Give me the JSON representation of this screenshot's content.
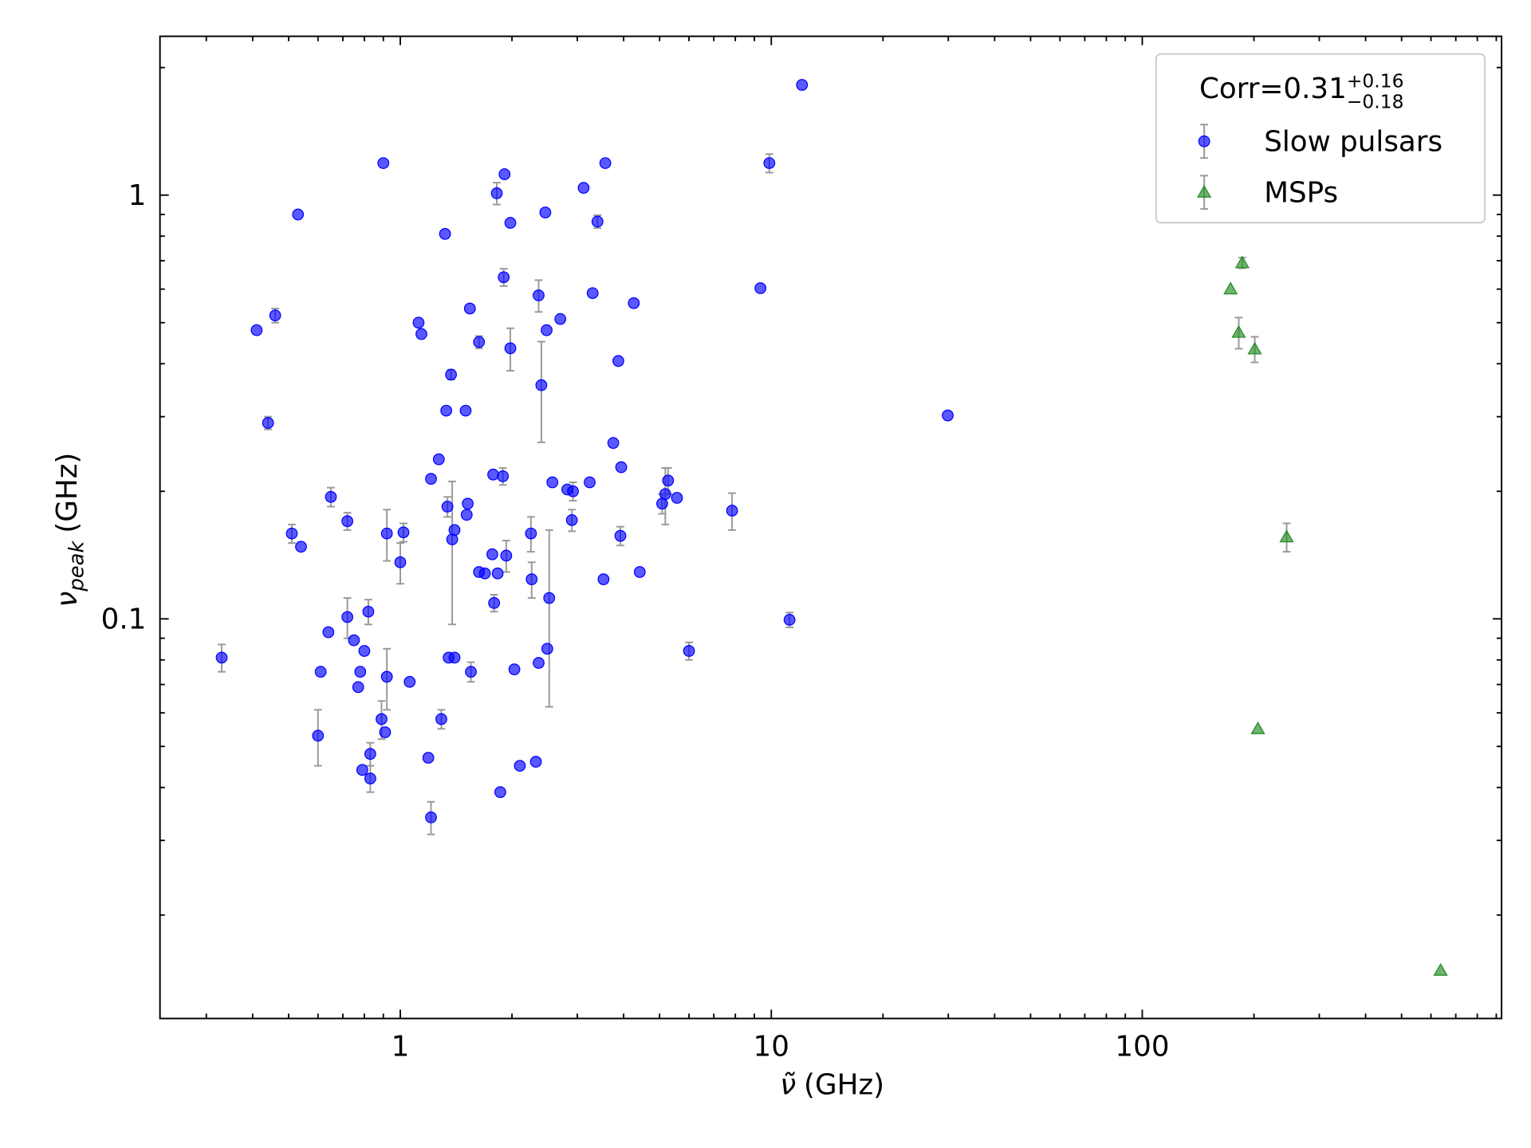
{
  "chart_data": {
    "type": "scatter",
    "x_label": {
      "symbol": "ν̃",
      "unit": "(GHz)"
    },
    "y_label": {
      "symbol": "ν",
      "subscript": "peak",
      "unit": "(GHz)"
    },
    "x_log": true,
    "y_log": true,
    "xlim": [
      0.225,
      930
    ],
    "ylim": [
      0.0114,
      2.37
    ],
    "xticks": [
      1,
      10,
      100
    ],
    "yticks": [
      0.1,
      1
    ],
    "xminorticks": [
      0.3,
      0.4,
      0.5,
      0.6,
      0.7,
      0.8,
      0.9,
      2,
      3,
      4,
      5,
      6,
      7,
      8,
      9,
      20,
      30,
      40,
      50,
      60,
      70,
      80,
      90,
      200,
      300,
      400,
      500,
      600,
      700,
      800,
      900
    ],
    "yminorticks": [
      0.02,
      0.03,
      0.04,
      0.05,
      0.06,
      0.07,
      0.08,
      0.09,
      0.2,
      0.3,
      0.4,
      0.5,
      0.6,
      0.7,
      0.8,
      0.9,
      2
    ],
    "legend": {
      "position": "upper right",
      "title": {
        "text": "Corr=0.31",
        "sup": "+0.16",
        "sub": "−0.18"
      }
    },
    "error_color": "#999999",
    "series": [
      {
        "name": "Slow pulsars",
        "color": "#0000ff",
        "marker": "circle",
        "x": [
          0.33,
          0.41,
          0.46,
          0.44,
          0.53,
          0.51,
          0.54,
          0.61,
          0.6,
          0.64,
          0.65,
          0.72,
          0.72,
          0.75,
          0.77,
          0.78,
          0.8,
          0.82,
          0.79,
          0.83,
          0.83,
          0.9,
          0.89,
          0.91,
          0.92,
          0.92,
          1.0,
          1.02,
          1.06,
          1.12,
          1.14,
          1.19,
          1.21,
          1.21,
          1.27,
          1.29,
          1.32,
          1.33,
          1.34,
          1.35,
          1.38,
          1.37,
          1.4,
          1.4,
          1.5,
          1.51,
          1.52,
          1.55,
          1.54,
          1.63,
          1.63,
          1.69,
          1.77,
          1.78,
          1.79,
          1.83,
          1.82,
          1.86,
          1.91,
          1.9,
          1.89,
          1.93,
          1.98,
          1.98,
          2.03,
          2.1,
          2.25,
          2.26,
          2.32,
          2.36,
          2.36,
          2.4,
          2.46,
          2.48,
          2.49,
          2.52,
          2.57,
          2.7,
          2.82,
          2.92,
          2.9,
          3.12,
          3.24,
          3.3,
          3.4,
          3.53,
          3.57,
          3.75,
          3.87,
          3.92,
          3.94,
          4.26,
          4.42,
          5.08,
          5.18,
          5.27,
          5.57,
          6.0,
          7.84,
          9.35,
          9.88,
          11.2,
          12.1,
          29.9
        ],
        "values": [
          0.081,
          0.48,
          0.52,
          0.29,
          0.9,
          0.159,
          0.148,
          0.075,
          0.053,
          0.093,
          0.194,
          0.101,
          0.17,
          0.089,
          0.069,
          0.075,
          0.084,
          0.104,
          0.044,
          0.042,
          0.048,
          1.19,
          0.058,
          0.054,
          0.159,
          0.073,
          0.136,
          0.16,
          0.071,
          0.5,
          0.47,
          0.047,
          0.214,
          0.034,
          0.238,
          0.058,
          0.81,
          0.31,
          0.184,
          0.081,
          0.154,
          0.377,
          0.162,
          0.081,
          0.31,
          0.176,
          0.187,
          0.075,
          0.54,
          0.45,
          0.129,
          0.128,
          0.142,
          0.219,
          0.109,
          0.128,
          1.01,
          0.039,
          1.12,
          0.64,
          0.217,
          0.141,
          0.86,
          0.435,
          0.076,
          0.045,
          0.159,
          0.124,
          0.046,
          0.58,
          0.0787,
          0.356,
          0.91,
          0.48,
          0.085,
          0.112,
          0.21,
          0.51,
          0.202,
          0.2,
          0.171,
          1.04,
          0.21,
          0.587,
          0.866,
          0.124,
          1.19,
          0.26,
          0.406,
          0.157,
          0.228,
          0.556,
          0.129,
          0.187,
          0.197,
          0.212,
          0.193,
          0.084,
          0.18,
          0.603,
          1.19,
          0.0995,
          1.82,
          0.302
        ],
        "yerr": [
          0.006,
          null,
          0.02,
          0.01,
          null,
          0.008,
          null,
          null,
          0.008,
          null,
          0.01,
          0.011,
          0.008,
          null,
          null,
          null,
          null,
          0.007,
          null,
          0.003,
          0.003,
          null,
          0.006,
          null,
          0.022,
          0.012,
          0.015,
          0.008,
          null,
          null,
          null,
          null,
          null,
          0.003,
          null,
          0.003,
          null,
          null,
          0.01,
          null,
          0.057,
          0.01,
          null,
          null,
          null,
          null,
          null,
          0.004,
          null,
          0.015,
          null,
          null,
          null,
          null,
          0.005,
          null,
          0.06,
          null,
          null,
          0.03,
          0.01,
          0.012,
          null,
          0.05,
          null,
          null,
          0.015,
          0.012,
          null,
          0.05,
          null,
          0.095,
          null,
          null,
          null,
          0.05,
          null,
          null,
          null,
          0.01,
          0.01,
          null,
          null,
          null,
          0.03,
          null,
          null,
          null,
          null,
          0.008,
          null,
          null,
          null,
          0.01,
          0.03,
          0.015,
          null,
          0.004,
          0.018,
          null,
          0.06,
          0.004,
          null,
          null
        ]
      },
      {
        "name": "MSPs",
        "color": "#228b22",
        "marker": "triangle",
        "x": [
          173,
          186,
          182,
          201,
          245,
          205,
          637
        ],
        "values": [
          0.6,
          0.692,
          0.474,
          0.433,
          0.156,
          0.055,
          0.0148
        ],
        "yerr": [
          null,
          0.02,
          0.04,
          0.03,
          0.012,
          null,
          null
        ]
      }
    ]
  }
}
